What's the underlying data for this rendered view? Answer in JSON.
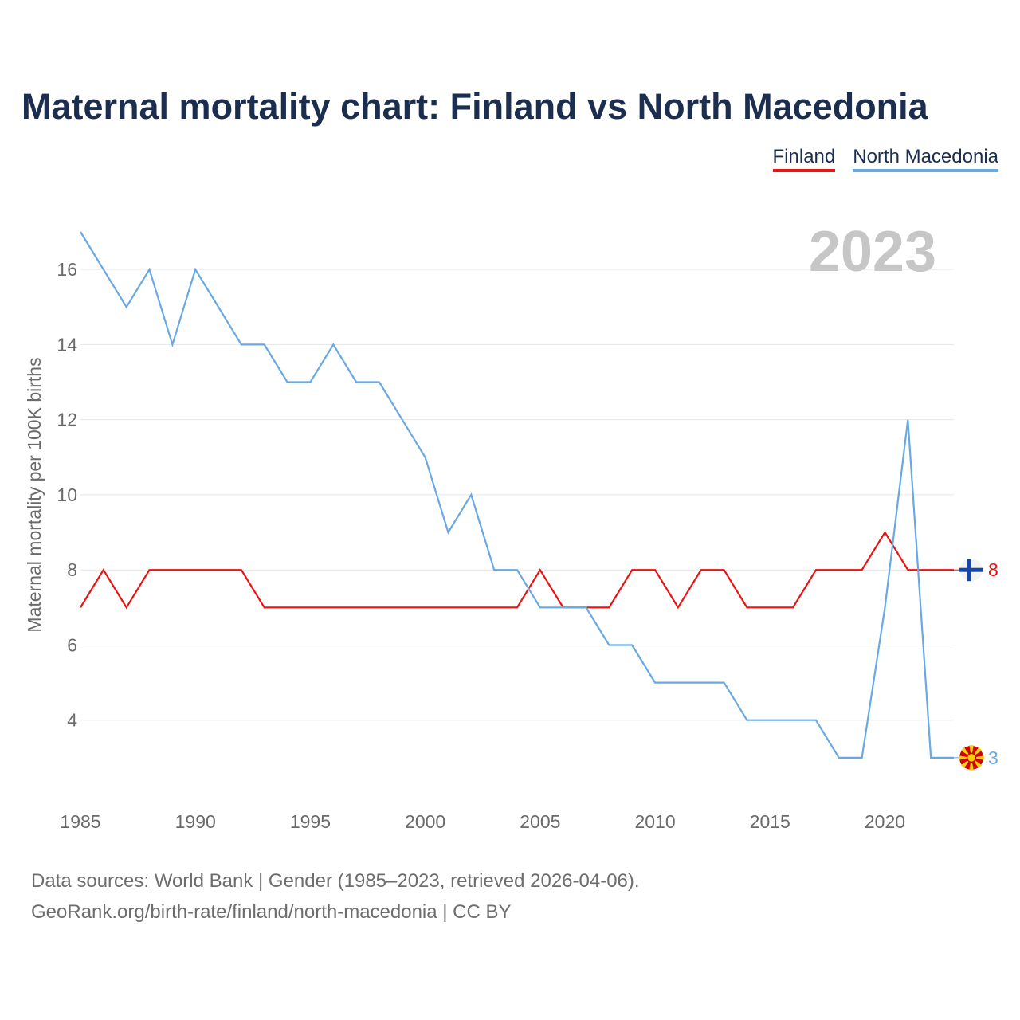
{
  "title": "Maternal mortality chart: Finland vs North Macedonia",
  "chart_data": {
    "type": "line",
    "title": "Maternal mortality chart: Finland vs North Macedonia",
    "ylabel": "Maternal mortality per 100K births",
    "xlabel": "",
    "year_label": "2023",
    "xlim": [
      1985,
      2023
    ],
    "ylim": [
      2,
      17
    ],
    "x_ticks": [
      1985,
      1990,
      1995,
      2000,
      2005,
      2010,
      2015,
      2020
    ],
    "y_ticks": [
      4,
      6,
      8,
      10,
      12,
      14,
      16
    ],
    "x": [
      1985,
      1986,
      1987,
      1988,
      1989,
      1990,
      1991,
      1992,
      1993,
      1994,
      1995,
      1996,
      1997,
      1998,
      1999,
      2000,
      2001,
      2002,
      2003,
      2004,
      2005,
      2006,
      2007,
      2008,
      2009,
      2010,
      2011,
      2012,
      2013,
      2014,
      2015,
      2016,
      2017,
      2018,
      2019,
      2020,
      2021,
      2022,
      2023
    ],
    "series": [
      {
        "name": "Finland",
        "color": "#ee1111",
        "flag": "finland-flag-icon",
        "end_label": "8",
        "values": [
          7,
          8,
          7,
          8,
          8,
          8,
          8,
          8,
          7,
          7,
          7,
          7,
          7,
          7,
          7,
          7,
          7,
          7,
          7,
          7,
          8,
          7,
          7,
          7,
          8,
          8,
          7,
          8,
          8,
          7,
          7,
          7,
          8,
          8,
          8,
          9,
          8,
          8,
          8
        ]
      },
      {
        "name": "North Macedonia",
        "color": "#68a9e4",
        "flag": "north-macedonia-flag-icon",
        "end_label": "3",
        "values": [
          17,
          16,
          15,
          16,
          14,
          16,
          15,
          14,
          14,
          13,
          13,
          14,
          13,
          13,
          12,
          11,
          9,
          10,
          8,
          8,
          7,
          7,
          7,
          6,
          6,
          5,
          5,
          5,
          5,
          4,
          4,
          4,
          4,
          3,
          3,
          7,
          12,
          3,
          3
        ]
      }
    ]
  },
  "source": {
    "line1": "Data sources: World Bank | Gender (1985–2023, retrieved 2026-04-06).",
    "line2": "GeoRank.org/birth-rate/finland/north-macedonia | CC BY"
  }
}
